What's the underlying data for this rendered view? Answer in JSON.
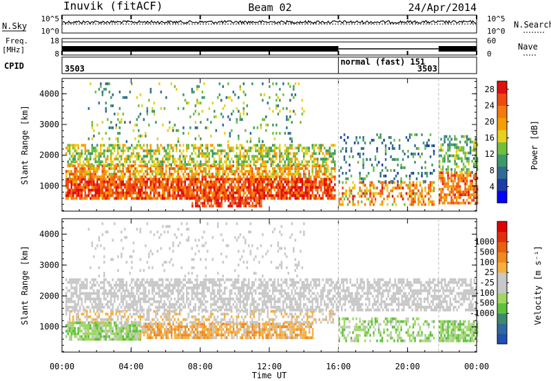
{
  "header": {
    "station": "Inuvik (fitACF)",
    "beam": "Beam 02",
    "date": "24/Apr/2014"
  },
  "noise_panel": {
    "left_label": "N.Sky",
    "right_label": "N.Search",
    "left_ticks": [
      "10^5",
      "10^0"
    ],
    "right_ticks": [
      "10^5",
      "10^0"
    ]
  },
  "freq_panel": {
    "left_label_1": "Freq.",
    "left_label_2": "[MHz]",
    "right_label": "Nave",
    "left_ticks": [
      "18",
      "8"
    ],
    "right_ticks": [
      "60",
      "0"
    ]
  },
  "cpid_panel": {
    "label": "CPID",
    "segments": [
      {
        "start_h": 0,
        "end_h": 16,
        "text": "3503"
      },
      {
        "start_h": 16,
        "end_h": 21.8,
        "text": "normal (fast) 151"
      },
      {
        "start_h": 21.8,
        "end_h": 24,
        "text": "3503"
      }
    ]
  },
  "x_axis": {
    "label": "Time UT",
    "range_h": [
      0,
      24
    ],
    "ticks": [
      "00:00",
      "04:00",
      "08:00",
      "12:00",
      "16:00",
      "20:00",
      "00:00"
    ],
    "tick_hours": [
      0,
      4,
      8,
      12,
      16,
      20,
      24
    ]
  },
  "chart_data": [
    {
      "type": "heatmap",
      "panel": "power",
      "ylabel": "Slant Range [km]",
      "ylim": [
        180,
        4500
      ],
      "yticks": [
        "1000",
        "2000",
        "3000",
        "4000"
      ],
      "ytick_values": [
        1000,
        2000,
        3000,
        4000
      ],
      "colorbar": {
        "label": "Power [dB]",
        "ticks": [
          "4",
          "8",
          "12",
          "16",
          "20",
          "24",
          "28"
        ],
        "tick_values": [
          4,
          8,
          12,
          16,
          20,
          24,
          28
        ],
        "range": [
          0,
          30
        ],
        "colors": [
          "#0000ff",
          "#1c3aa8",
          "#2f6b92",
          "#3c9a6a",
          "#6fbf3f",
          "#e8d020",
          "#f6a000",
          "#f47a10",
          "#ee4a12",
          "#e01010"
        ]
      },
      "regions": [
        {
          "t": [
            0.2,
            15.8
          ],
          "r": [
            550,
            1250
          ],
          "v": [
            20,
            30
          ],
          "d": 0.85
        },
        {
          "t": [
            0.2,
            15.8
          ],
          "r": [
            1250,
            1650
          ],
          "v": [
            14,
            26
          ],
          "d": 0.7
        },
        {
          "t": [
            0.2,
            15.8
          ],
          "r": [
            1650,
            2350
          ],
          "v": [
            10,
            20
          ],
          "d": 0.55
        },
        {
          "t": [
            7.5,
            11.5
          ],
          "r": [
            300,
            650
          ],
          "v": [
            22,
            30
          ],
          "d": 0.7
        },
        {
          "t": [
            1.5,
            14.0
          ],
          "r": [
            2400,
            4300
          ],
          "v": [
            6,
            18
          ],
          "d": 0.1
        },
        {
          "t": [
            16.0,
            21.5
          ],
          "r": [
            350,
            1100
          ],
          "v": [
            14,
            28
          ],
          "d": 0.45
        },
        {
          "t": [
            16.0,
            21.5
          ],
          "r": [
            1100,
            2700
          ],
          "v": [
            4,
            14
          ],
          "d": 0.18
        },
        {
          "t": [
            21.8,
            24.0
          ],
          "r": [
            400,
            1400
          ],
          "v": [
            18,
            28
          ],
          "d": 0.7
        },
        {
          "t": [
            21.8,
            24.0
          ],
          "r": [
            1400,
            2600
          ],
          "v": [
            8,
            18
          ],
          "d": 0.45
        }
      ]
    },
    {
      "type": "heatmap",
      "panel": "velocity",
      "ylabel": "Slant Range [km]",
      "ylim": [
        180,
        4500
      ],
      "yticks": [
        "1000",
        "2000",
        "3000",
        "4000"
      ],
      "ytick_values": [
        1000,
        2000,
        3000,
        4000
      ],
      "colorbar": {
        "label": "Velocity [m s⁻¹]",
        "ticks": [
          "1000",
          "500",
          "100",
          "25",
          "-25",
          "-100",
          "-500",
          "-1000"
        ],
        "tick_values": [
          1000,
          500,
          100,
          25,
          -25,
          -100,
          -500,
          -1000
        ],
        "range": [
          -1100,
          1100
        ],
        "colors": [
          "#2050b0",
          "#2e6aa0",
          "#3c8a6a",
          "#5ec040",
          "#9ed860",
          "#c8c8c8",
          "#c8c8c8",
          "#f6b040",
          "#f08a20",
          "#ea6010",
          "#e03010",
          "#e00000"
        ]
      },
      "regions": [
        {
          "t": [
            0.2,
            4.5
          ],
          "r": [
            550,
            1100
          ],
          "v": [
            -500,
            -100
          ],
          "d": 0.85
        },
        {
          "t": [
            4.5,
            14.5
          ],
          "r": [
            600,
            1100
          ],
          "v": [
            100,
            500
          ],
          "d": 0.8
        },
        {
          "t": [
            0.2,
            15.8
          ],
          "r": [
            1100,
            1500
          ],
          "v": [
            25,
            300
          ],
          "d": 0.45
        },
        {
          "t": [
            0.2,
            24.0
          ],
          "r": [
            1500,
            2500
          ],
          "v": [
            -25,
            25
          ],
          "d": 0.6
        },
        {
          "t": [
            16.0,
            21.5
          ],
          "r": [
            500,
            1300
          ],
          "v": [
            -500,
            -100
          ],
          "d": 0.45
        },
        {
          "t": [
            21.8,
            24.0
          ],
          "r": [
            500,
            1200
          ],
          "v": [
            -500,
            -100
          ],
          "d": 0.75
        },
        {
          "t": [
            1.5,
            14.0
          ],
          "r": [
            2600,
            4300
          ],
          "v": [
            -25,
            100
          ],
          "d": 0.08
        }
      ]
    }
  ]
}
